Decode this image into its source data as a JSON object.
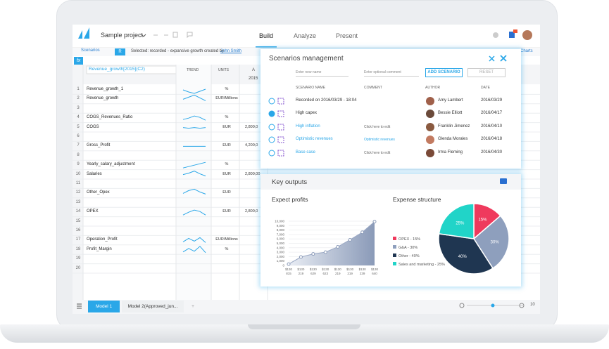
{
  "app": {
    "project": "Sample project",
    "tabs": [
      "Build",
      "Analyze",
      "Present"
    ]
  },
  "toolbar": {
    "scenarios": "Scenarios",
    "r": "R",
    "selected": "Selected: recorded - expansive growth created by",
    "author": "John Smith",
    "charts": "Charts"
  },
  "formula": {
    "fx": "fx",
    "text": "Revenue_growth[2015](C2)"
  },
  "sheet": {
    "headers": {
      "trend": "TREND",
      "units": "UNITS",
      "col": "A",
      "year": "2015"
    },
    "rows": [
      {
        "n": 1,
        "name": "Revenue_growth_1",
        "unit": "%",
        "value": null
      },
      {
        "n": 2,
        "name": "Revenue_growth",
        "unit": "EUR/Millions",
        "value": null
      },
      {
        "n": 3,
        "name": null,
        "unit": null,
        "value": null
      },
      {
        "n": 4,
        "name": "COGS_Revenues_Ratio",
        "unit": "%",
        "value": null
      },
      {
        "n": 5,
        "name": "COGS",
        "unit": "EUR",
        "value": "2,800,0"
      },
      {
        "n": 6,
        "name": null,
        "unit": null,
        "value": null
      },
      {
        "n": 7,
        "name": "Gross_Profit",
        "unit": "EUR",
        "value": "4,200,0"
      },
      {
        "n": 8,
        "name": null,
        "unit": null,
        "value": null
      },
      {
        "n": 9,
        "name": "Yearly_salary_adjustment",
        "unit": "%",
        "value": null
      },
      {
        "n": 10,
        "name": "Salaries",
        "unit": "EUR",
        "value": "2,800,00"
      },
      {
        "n": 11,
        "name": null,
        "unit": null,
        "value": null
      },
      {
        "n": 12,
        "name": "Other_Opex",
        "unit": "EUR",
        "value": null
      },
      {
        "n": 13,
        "name": null,
        "unit": null,
        "value": null
      },
      {
        "n": 14,
        "name": "OPEX",
        "unit": "EUR",
        "value": "2,800,0"
      },
      {
        "n": 15,
        "name": null,
        "unit": null,
        "value": null
      },
      {
        "n": 16,
        "name": null,
        "unit": null,
        "value": null
      },
      {
        "n": 17,
        "name": "Operation_Profit",
        "unit": "EUR/Millions",
        "value": null
      },
      {
        "n": 18,
        "name": "Profit_Margin",
        "unit": "%",
        "value": null
      },
      {
        "n": 19,
        "name": null,
        "unit": null,
        "value": null
      },
      {
        "n": 20,
        "name": null,
        "unit": null,
        "value": null
      }
    ],
    "tabs": [
      "Model 1",
      "Model 2(Approved_jun...",
      "+"
    ],
    "zoom": "10"
  },
  "scenarios": {
    "title": "Scenarios management",
    "name_placeholder": "Enter new name",
    "comment_placeholder": "Enter optional comment",
    "add": "ADD SCENARIO",
    "reset": "RESET",
    "columns": [
      "SCENARIO NAME",
      "COMMENT",
      "AUTHOR",
      "DATE"
    ],
    "rows": [
      {
        "name": "Recorded on 2016/03/29 - 18:04",
        "comment": null,
        "author": "Amy Lambert",
        "date": "2016/03/29"
      },
      {
        "name": "High capex",
        "comment": null,
        "author": "Bessie Elliott",
        "date": "2016/04/17"
      },
      {
        "name": "High inflation",
        "comment": "Click here to edit",
        "author": "Franklin Jimenez",
        "date": "2016/04/10"
      },
      {
        "name": "Optimistic revenues",
        "comment": "Optimistic revenues",
        "author": "Glenda Morales",
        "date": "2016/04/18"
      },
      {
        "name": "Base case",
        "comment": "Click here to edit",
        "author": "Irma Fleming",
        "date": "2016/04/30"
      }
    ]
  },
  "outputs": {
    "title": "Key outputs"
  },
  "chart_data": [
    {
      "type": "area",
      "title": "Expect profits",
      "categories": [
        "$130 815",
        "$130 219",
        "$130 629",
        "$130 623",
        "$130 219",
        "$130 219",
        "$130 239",
        "$130 640"
      ],
      "values": [
        300,
        1900,
        2600,
        3000,
        4200,
        5800,
        7500,
        9900
      ],
      "color": "#8a9ab8",
      "ylim": [
        0,
        10000
      ],
      "yticks": [
        0,
        {
          "value": 1000,
          "label": "1,000"
        },
        {
          "value": 2000,
          "label": "2,000"
        },
        {
          "value": 3000,
          "label": "3,000"
        },
        {
          "value": 4000,
          "label": "4,000"
        },
        {
          "value": 5000,
          "label": "5,000"
        },
        {
          "value": 6000,
          "label": "6,000"
        },
        {
          "value": 7000,
          "label": "7,000"
        },
        {
          "value": 8000,
          "label": "8,000"
        },
        {
          "value": 9000,
          "label": "9,000"
        },
        {
          "value": 10000,
          "label": "10,000"
        }
      ]
    },
    {
      "type": "pie",
      "title": "Expense structure",
      "categories": [
        "OPEX - 15%",
        "G&A - 30%",
        "Other - 40%",
        "Sales and marketing - 25%"
      ],
      "values": [
        15,
        30,
        40,
        25
      ],
      "value_labels": [
        "15%",
        "30%",
        "40%",
        "25%"
      ],
      "colors": [
        "#ef3a5d",
        "#8e9fbd",
        "#1f3651",
        "#21d4c8"
      ]
    }
  ]
}
